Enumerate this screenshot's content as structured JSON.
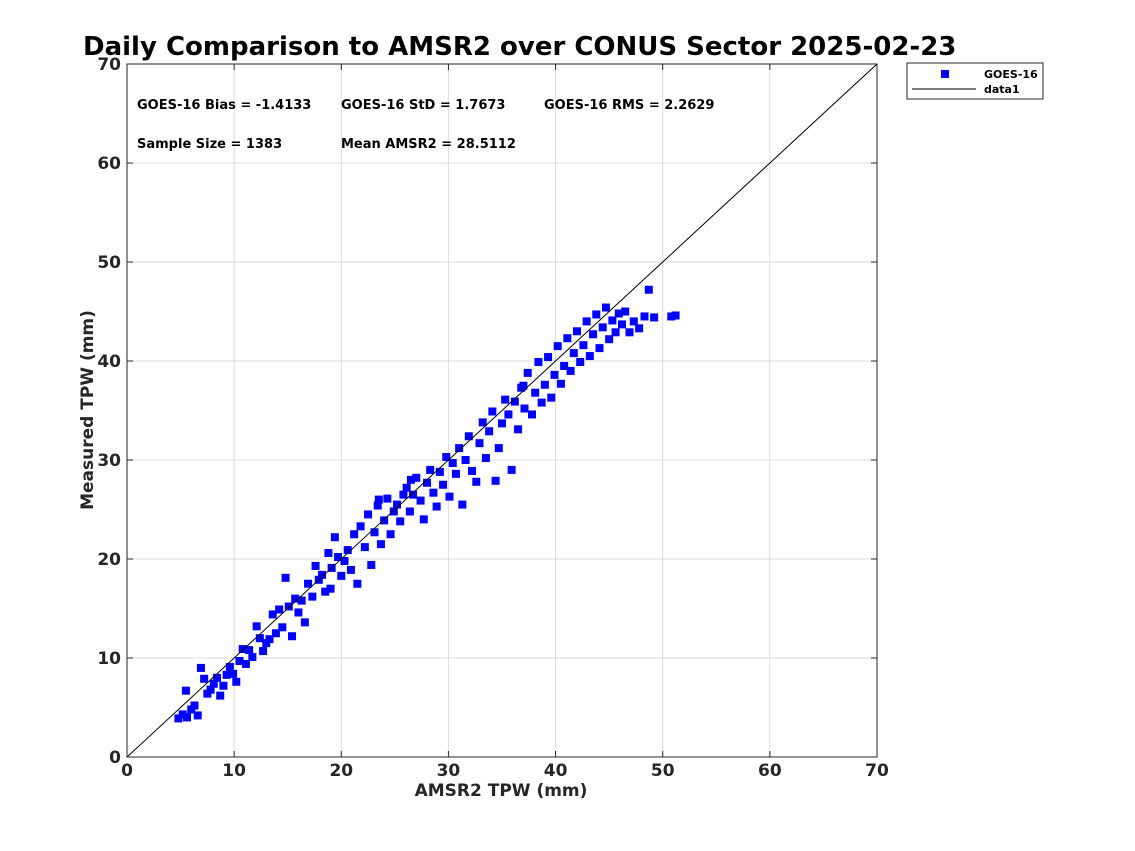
{
  "chart_data": {
    "type": "scatter",
    "title": "Daily Comparison to AMSR2 over CONUS Sector 2025-02-23",
    "xlabel": "AMSR2 TPW (mm)",
    "ylabel": "Measured TPW (mm)",
    "xlim": [
      0,
      70
    ],
    "ylim": [
      0,
      70
    ],
    "xticks": [
      0,
      10,
      20,
      30,
      40,
      50,
      60,
      70
    ],
    "yticks": [
      0,
      10,
      20,
      30,
      40,
      50,
      60,
      70
    ],
    "grid": true,
    "legend_position": "outside-top-right",
    "stats": [
      {
        "label": "GOES-16 Bias = -1.4133"
      },
      {
        "label": "GOES-16 StD = 1.7673"
      },
      {
        "label": "GOES-16 RMS = 2.2629"
      },
      {
        "label": "Sample Size = 1383"
      },
      {
        "label": "Mean AMSR2 = 28.5112"
      }
    ],
    "series": [
      {
        "name": "GOES-16",
        "kind": "scatter",
        "color": "#0000ff",
        "marker": "square",
        "points": [
          [
            4.8,
            3.9
          ],
          [
            5.2,
            4.3
          ],
          [
            5.6,
            4.0
          ],
          [
            6.0,
            4.8
          ],
          [
            6.3,
            5.2
          ],
          [
            6.6,
            4.2
          ],
          [
            5.5,
            6.7
          ],
          [
            6.9,
            9.0
          ],
          [
            7.2,
            7.9
          ],
          [
            7.5,
            6.4
          ],
          [
            7.8,
            6.8
          ],
          [
            8.1,
            7.4
          ],
          [
            8.4,
            8.0
          ],
          [
            8.7,
            6.2
          ],
          [
            9.0,
            7.2
          ],
          [
            9.3,
            8.3
          ],
          [
            9.6,
            9.1
          ],
          [
            9.9,
            8.4
          ],
          [
            10.2,
            7.6
          ],
          [
            10.5,
            9.7
          ],
          [
            10.8,
            10.9
          ],
          [
            11.1,
            9.4
          ],
          [
            11.4,
            10.8
          ],
          [
            11.7,
            10.1
          ],
          [
            12.1,
            13.2
          ],
          [
            12.4,
            12.0
          ],
          [
            12.7,
            10.7
          ],
          [
            13.0,
            11.5
          ],
          [
            13.3,
            11.9
          ],
          [
            13.6,
            14.4
          ],
          [
            13.9,
            12.5
          ],
          [
            14.2,
            14.9
          ],
          [
            14.5,
            13.1
          ],
          [
            14.8,
            18.1
          ],
          [
            15.1,
            15.2
          ],
          [
            15.4,
            12.2
          ],
          [
            15.7,
            16.0
          ],
          [
            16.0,
            14.6
          ],
          [
            16.3,
            15.8
          ],
          [
            16.6,
            13.6
          ],
          [
            16.9,
            17.5
          ],
          [
            17.3,
            16.2
          ],
          [
            17.6,
            19.3
          ],
          [
            17.9,
            17.9
          ],
          [
            18.2,
            18.4
          ],
          [
            18.5,
            16.7
          ],
          [
            18.8,
            20.6
          ],
          [
            19.1,
            19.1
          ],
          [
            19.4,
            22.2
          ],
          [
            19.7,
            20.2
          ],
          [
            20.0,
            18.3
          ],
          [
            20.3,
            19.8
          ],
          [
            20.6,
            20.9
          ],
          [
            20.9,
            18.9
          ],
          [
            21.2,
            22.5
          ],
          [
            21.5,
            17.5
          ],
          [
            21.8,
            23.3
          ],
          [
            22.2,
            21.2
          ],
          [
            22.5,
            24.5
          ],
          [
            22.8,
            19.4
          ],
          [
            23.1,
            22.7
          ],
          [
            23.4,
            25.4
          ],
          [
            23.7,
            21.5
          ],
          [
            24.0,
            23.9
          ],
          [
            24.3,
            26.1
          ],
          [
            24.6,
            22.5
          ],
          [
            24.9,
            24.8
          ],
          [
            25.2,
            25.5
          ],
          [
            25.5,
            23.8
          ],
          [
            25.8,
            26.5
          ],
          [
            26.1,
            27.2
          ],
          [
            26.4,
            24.8
          ],
          [
            26.7,
            26.5
          ],
          [
            27.0,
            28.2
          ],
          [
            27.4,
            25.9
          ],
          [
            27.7,
            24.0
          ],
          [
            28.0,
            27.7
          ],
          [
            28.3,
            29.0
          ],
          [
            28.6,
            26.7
          ],
          [
            28.9,
            25.3
          ],
          [
            29.2,
            28.8
          ],
          [
            29.5,
            27.5
          ],
          [
            29.8,
            30.3
          ],
          [
            30.1,
            26.3
          ],
          [
            30.4,
            29.7
          ],
          [
            30.7,
            28.6
          ],
          [
            31.0,
            31.2
          ],
          [
            31.3,
            25.5
          ],
          [
            31.6,
            30.0
          ],
          [
            31.9,
            32.4
          ],
          [
            32.2,
            28.9
          ],
          [
            32.6,
            27.8
          ],
          [
            32.9,
            31.7
          ],
          [
            33.2,
            33.8
          ],
          [
            33.5,
            30.2
          ],
          [
            33.8,
            32.9
          ],
          [
            34.1,
            34.9
          ],
          [
            34.4,
            27.9
          ],
          [
            34.7,
            31.2
          ],
          [
            35.0,
            33.7
          ],
          [
            35.3,
            36.1
          ],
          [
            35.6,
            34.6
          ],
          [
            35.9,
            29.0
          ],
          [
            36.2,
            35.9
          ],
          [
            36.5,
            33.1
          ],
          [
            36.8,
            37.3
          ],
          [
            37.1,
            35.2
          ],
          [
            37.4,
            38.8
          ],
          [
            37.8,
            34.6
          ],
          [
            38.1,
            36.8
          ],
          [
            38.4,
            39.9
          ],
          [
            38.7,
            35.8
          ],
          [
            39.0,
            37.6
          ],
          [
            39.3,
            40.4
          ],
          [
            39.6,
            36.3
          ],
          [
            39.9,
            38.6
          ],
          [
            40.2,
            41.5
          ],
          [
            40.5,
            37.7
          ],
          [
            40.8,
            39.5
          ],
          [
            41.1,
            42.3
          ],
          [
            41.4,
            39.0
          ],
          [
            41.7,
            40.8
          ],
          [
            42.0,
            43.0
          ],
          [
            42.3,
            39.9
          ],
          [
            42.6,
            41.6
          ],
          [
            42.9,
            44.0
          ],
          [
            43.2,
            40.5
          ],
          [
            43.5,
            42.7
          ],
          [
            43.8,
            44.7
          ],
          [
            44.1,
            41.3
          ],
          [
            44.4,
            43.4
          ],
          [
            44.7,
            45.4
          ],
          [
            45.0,
            42.2
          ],
          [
            45.3,
            44.1
          ],
          [
            45.6,
            42.9
          ],
          [
            45.9,
            44.8
          ],
          [
            46.2,
            43.7
          ],
          [
            46.5,
            45.0
          ],
          [
            46.9,
            42.9
          ],
          [
            47.3,
            44.0
          ],
          [
            47.8,
            43.3
          ],
          [
            48.3,
            44.5
          ],
          [
            48.7,
            47.2
          ],
          [
            49.2,
            44.4
          ],
          [
            50.8,
            44.5
          ],
          [
            51.2,
            44.6
          ],
          [
            23.5,
            26.0
          ],
          [
            19.0,
            17.0
          ],
          [
            26.5,
            28.0
          ],
          [
            37.0,
            37.5
          ]
        ]
      },
      {
        "name": "data1",
        "kind": "line",
        "color": "#000000",
        "x": [
          0,
          70
        ],
        "y": [
          0,
          70
        ]
      }
    ]
  }
}
